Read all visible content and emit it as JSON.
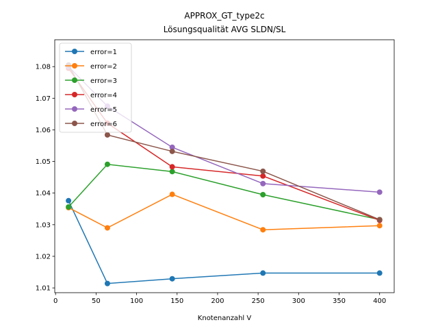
{
  "chart_data": {
    "type": "line",
    "title_line1": "APPROX_GT_type2c",
    "title_line2": "Lösungsqualität AVG SLDN/SL",
    "xlabel": "Knotenanzahl V",
    "ylabel": "",
    "x": [
      16,
      64,
      144,
      256,
      400
    ],
    "xlim": [
      -1,
      418
    ],
    "ylim": [
      1.0085,
      1.0885
    ],
    "xticks": [
      0,
      50,
      100,
      150,
      200,
      250,
      300,
      350,
      400
    ],
    "xtick_labels": [
      "0",
      "50",
      "100",
      "150",
      "200",
      "250",
      "300",
      "350",
      "400"
    ],
    "yticks": [
      1.01,
      1.02,
      1.03,
      1.04,
      1.05,
      1.06,
      1.07,
      1.08
    ],
    "ytick_labels": [
      "1.01",
      "1.02",
      "1.03",
      "1.04",
      "1.05",
      "1.06",
      "1.07",
      "1.08"
    ],
    "grid": false,
    "legend_position": "top-left",
    "series": [
      {
        "name": "error=1",
        "color": "#1f77b4",
        "values": [
          1.0376,
          1.0114,
          1.0129,
          1.0147,
          1.0147
        ]
      },
      {
        "name": "error=2",
        "color": "#ff7f0e",
        "values": [
          1.0354,
          1.029,
          1.0396,
          1.0284,
          1.0297
        ]
      },
      {
        "name": "error=3",
        "color": "#2ca02c",
        "values": [
          1.0356,
          1.0491,
          1.0468,
          1.0395,
          1.0316
        ]
      },
      {
        "name": "error=4",
        "color": "#d62728",
        "values": [
          1.0795,
          1.0621,
          1.0483,
          1.0454,
          1.0314
        ]
      },
      {
        "name": "error=5",
        "color": "#9467bd",
        "values": [
          1.08,
          1.0675,
          1.0545,
          1.043,
          1.0403
        ]
      },
      {
        "name": "error=6",
        "color": "#8c564b",
        "values": [
          1.0805,
          1.0584,
          1.0532,
          1.0469,
          1.0316
        ]
      }
    ]
  }
}
